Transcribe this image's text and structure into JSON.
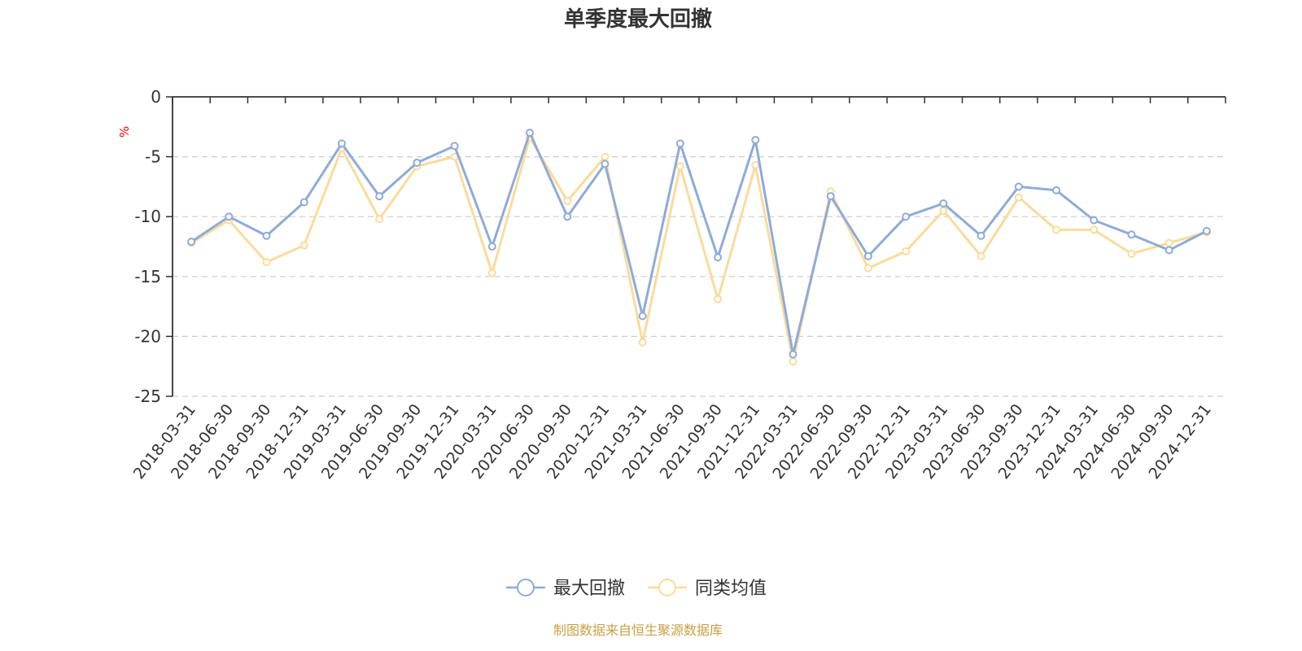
{
  "chart_data": {
    "type": "line",
    "title": "单季度最大回撤",
    "ylabel": "%",
    "ylim": [
      -25,
      0
    ],
    "yticks": [
      0,
      -5,
      -10,
      -15,
      -20,
      -25
    ],
    "grid": true,
    "legend_position": "bottom",
    "categories": [
      "2018-03-31",
      "2018-06-30",
      "2018-09-30",
      "2018-12-31",
      "2019-03-31",
      "2019-06-30",
      "2019-09-30",
      "2019-12-31",
      "2020-03-31",
      "2020-06-30",
      "2020-09-30",
      "2020-12-31",
      "2021-03-31",
      "2021-06-30",
      "2021-09-30",
      "2021-12-31",
      "2022-03-31",
      "2022-06-30",
      "2022-09-30",
      "2022-12-31",
      "2023-03-31",
      "2023-06-30",
      "2023-09-30",
      "2023-12-31",
      "2024-03-31",
      "2024-06-30",
      "2024-09-30",
      "2024-12-31"
    ],
    "series": [
      {
        "name": "最大回撤",
        "color": "#8eabd8",
        "values": [
          -12.1,
          -10.0,
          -11.6,
          -8.8,
          -3.9,
          -8.3,
          -5.5,
          -4.1,
          -12.5,
          -3.0,
          -10.0,
          -5.6,
          -18.3,
          -3.9,
          -13.4,
          -3.6,
          -21.5,
          -8.3,
          -13.3,
          -10.0,
          -8.9,
          -11.6,
          -7.5,
          -7.8,
          -10.3,
          -11.5,
          -12.8,
          -11.2
        ]
      },
      {
        "name": "同类均值",
        "color": "#fbdb9b",
        "values": [
          -12.2,
          -10.3,
          -13.8,
          -12.4,
          -4.3,
          -10.2,
          -5.8,
          -5.0,
          -14.7,
          -3.4,
          -8.7,
          -5.0,
          -20.5,
          -5.8,
          -16.9,
          -5.7,
          -22.1,
          -7.9,
          -14.3,
          -12.9,
          -9.5,
          -13.3,
          -8.4,
          -11.1,
          -11.1,
          -13.1,
          -12.2,
          -11.3
        ]
      }
    ],
    "unit_color": "#ff0000"
  },
  "source": {
    "text": "制图数据来自恒生聚源数据库",
    "color": "#c8a046"
  }
}
